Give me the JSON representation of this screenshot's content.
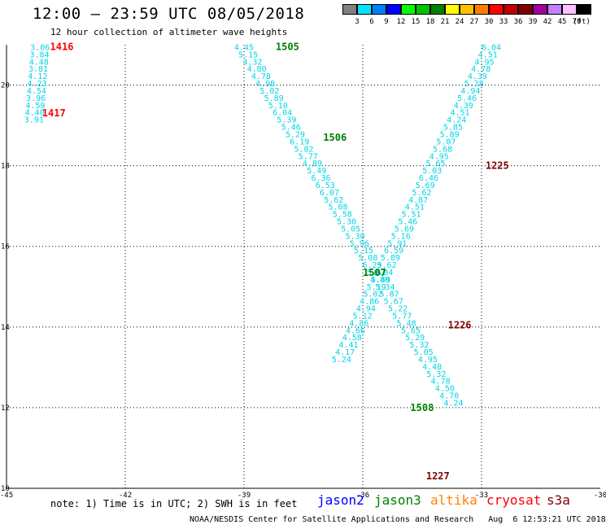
{
  "title": "12:00 – 23:59 UTC 08/05/2018",
  "subtitle": "12 hour collection of altimeter wave heights",
  "legend": {
    "unit": "(ft)",
    "items": [
      {
        "label": "3",
        "color": "#808080"
      },
      {
        "label": "6",
        "color": "#00e5ff"
      },
      {
        "label": "9",
        "color": "#0080ff"
      },
      {
        "label": "12",
        "color": "#0000ff"
      },
      {
        "label": "15",
        "color": "#00ff00"
      },
      {
        "label": "18",
        "color": "#00c000"
      },
      {
        "label": "21",
        "color": "#008000"
      },
      {
        "label": "24",
        "color": "#ffff00"
      },
      {
        "label": "27",
        "color": "#ffc000"
      },
      {
        "label": "30",
        "color": "#ff8000"
      },
      {
        "label": "33",
        "color": "#ff0000"
      },
      {
        "label": "36",
        "color": "#c00000"
      },
      {
        "label": "39",
        "color": "#800000"
      },
      {
        "label": "42",
        "color": "#a000a0"
      },
      {
        "label": "45",
        "color": "#c080ff"
      },
      {
        "label": "70",
        "color": "#ffc0ff"
      },
      {
        "label": "",
        "color": "#000000"
      }
    ]
  },
  "axes": {
    "lon_labels": [
      "-45",
      "-42",
      "-39",
      "-36",
      "-33",
      "-30"
    ],
    "lat_labels": [
      "20",
      "18",
      "16",
      "14",
      "12",
      "10"
    ]
  },
  "chart_data": {
    "type": "scatter",
    "xlim": [
      -45,
      -30
    ],
    "ylim": [
      10,
      21
    ],
    "tracks": [
      {
        "pass": "1416",
        "sat": "cryosat",
        "lat_start": 20.95,
        "lat_step": -0.18,
        "lon_start": -44.4,
        "lon_step": -0.015,
        "values": [
          "3.06",
          "3.84",
          "4.48",
          "3.81",
          "4.12",
          "4.23",
          "4.54",
          "3.96",
          "4.59",
          "4.40",
          "3.91"
        ]
      },
      {
        "pass": "1505",
        "sat": "jason3",
        "lat_start": 20.95,
        "lat_step": -0.18,
        "lon_start": -39.25,
        "lon_step": 0.108,
        "values": [
          "4.45",
          "5.15",
          "4.32",
          "4.80",
          "4.78",
          "4.98",
          "5.02",
          "5.89",
          "5.10",
          "6.04",
          "5.39",
          "5.46",
          "5.29",
          "6.19",
          "5.82",
          "5.77",
          "4.89",
          "5.49",
          "6.36",
          "6.53",
          "6.07",
          "5.62",
          "5.08",
          "5.58",
          "5.30",
          "5.05",
          "5.30",
          "5.96",
          "5.15",
          "5.08",
          "6.29",
          "5.62",
          "5.49",
          "5.34",
          "5.87",
          "5.67",
          "5.22",
          "5.77",
          "5.48",
          "5.65",
          "5.29",
          "5.32",
          "5.05",
          "4.95",
          "4.48",
          "5.32",
          "4.78",
          "4.50",
          "4.70",
          "4.24"
        ]
      },
      {
        "pass": "1225",
        "sat": "s3a",
        "lat_start": 20.95,
        "lat_step": -0.18,
        "lon_start": -33.0,
        "lon_step": -0.088,
        "values": [
          "6.04",
          "4.51",
          "4.95",
          "4.78",
          "4.39",
          "5.28",
          "4.94",
          "5.46",
          "4.39",
          "4.51",
          "4.24",
          "5.85",
          "5.89",
          "5.07",
          "5.68",
          "4.95",
          "5.65",
          "5.03",
          "6.46",
          "5.69",
          "5.62",
          "4.87",
          "4.51",
          "5.51",
          "5.46",
          "5.69",
          "5.16",
          "5.91",
          "6.59",
          "5.89",
          "5.62",
          "6.04",
          "4.80",
          "5.19",
          "5.02",
          "4.86",
          "4.94",
          "5.12",
          "4.86",
          "4.66",
          "4.58",
          "4.41",
          "4.17",
          "5.24"
        ]
      }
    ],
    "pass_labels": [
      {
        "text": "1416",
        "sat": "cryosat",
        "lat": 20.95,
        "lon": -43.9
      },
      {
        "text": "1417",
        "sat": "cryosat",
        "lat": 19.3,
        "lon": -44.1
      },
      {
        "text": "1505",
        "sat": "jason3",
        "lat": 20.95,
        "lon": -38.2
      },
      {
        "text": "1506",
        "sat": "jason3",
        "lat": 18.7,
        "lon": -37.0
      },
      {
        "text": "1507",
        "sat": "jason3",
        "lat": 15.35,
        "lon": -36.0
      },
      {
        "text": "1508",
        "sat": "jason3",
        "lat": 12.0,
        "lon": -34.8
      },
      {
        "text": "1225",
        "sat": "s3a",
        "lat": 18.0,
        "lon": -32.9
      },
      {
        "text": "1226",
        "sat": "s3a",
        "lat": 14.05,
        "lon": -33.85
      },
      {
        "text": "1227",
        "sat": "s3a",
        "lat": 10.3,
        "lon": -34.4
      }
    ]
  },
  "note": "note: 1) Time is in UTC; 2) SWH is in feet",
  "satellites": [
    {
      "name": "jason2",
      "color": "#0000ff"
    },
    {
      "name": "jason3",
      "color": "#008000"
    },
    {
      "name": "altika",
      "color": "#ff8000"
    },
    {
      "name": "cryosat",
      "color": "#ff0000"
    },
    {
      "name": "s3a",
      "color": "#800000"
    }
  ],
  "track_color": "#00d5e5",
  "footer": "NOAA/NESDIS Center for Satellite Applications and Research   Aug  6 12:53:21 UTC 2018"
}
